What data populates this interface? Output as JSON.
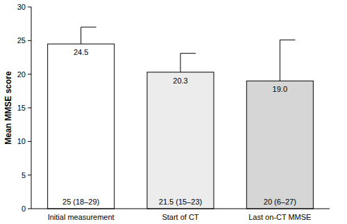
{
  "chart_data": {
    "type": "bar",
    "y_label": "Mean MMSE score",
    "categories": [
      "Initial measurement",
      "Start of CT",
      "Last on-CT MMSE"
    ],
    "values": [
      24.5,
      20.3,
      19.0
    ],
    "value_labels": [
      "24.5",
      "20.3",
      "19.0"
    ],
    "errors": [
      2.5,
      2.8,
      6.1
    ],
    "annotations": [
      "25 (18–29)",
      "21.5 (15–23)",
      "20 (6–27)"
    ],
    "colors": [
      "#ffffff",
      "#ececec",
      "#d6d6d6"
    ],
    "data_labels": true,
    "grid": false,
    "ylim": [
      0,
      30
    ],
    "yticks": [
      0,
      5,
      10,
      15,
      20,
      25,
      30
    ]
  }
}
